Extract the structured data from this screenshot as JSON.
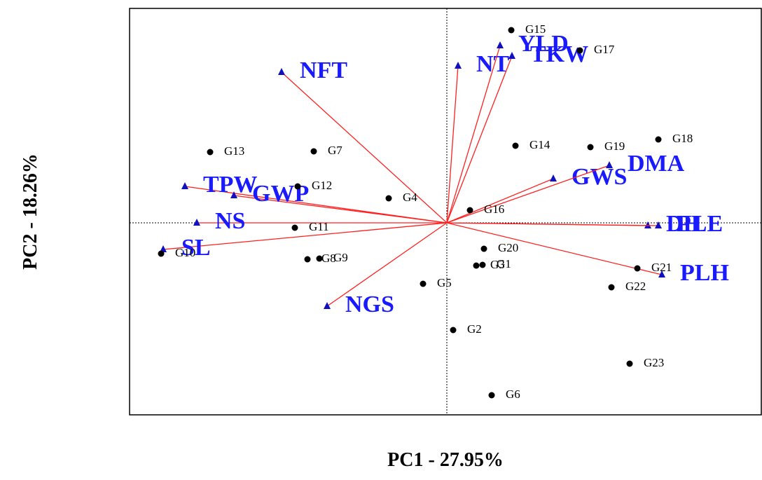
{
  "chart_data": {
    "type": "biplot",
    "x_label": "PC1 - 27.95%",
    "y_label": "PC2 - 18.26%",
    "xlim": [
      -4.53,
      4.49
    ],
    "ylim": [
      -2.74,
      3.06
    ],
    "points": {
      "color": "#000000",
      "labels": [
        "G15",
        "G17",
        "G14",
        "G19",
        "G18",
        "G13",
        "G7",
        "G12",
        "G4",
        "G16",
        "G11",
        "G10",
        "G8",
        "G9",
        "G20",
        "G3",
        "G1",
        "G5",
        "G21",
        "G22",
        "G2",
        "G23",
        "G6"
      ],
      "x": [
        0.92,
        1.9,
        0.98,
        2.05,
        3.02,
        -3.38,
        -1.9,
        -2.13,
        -0.83,
        0.33,
        -2.17,
        -4.08,
        -1.99,
        -1.82,
        0.53,
        0.42,
        0.51,
        -0.34,
        2.72,
        2.35,
        0.09,
        2.61,
        0.64
      ],
      "y": [
        2.75,
        2.46,
        1.1,
        1.08,
        1.19,
        1.01,
        1.02,
        0.52,
        0.35,
        0.18,
        -0.07,
        -0.44,
        -0.52,
        -0.51,
        -0.37,
        -0.61,
        -0.6,
        -0.87,
        -0.65,
        -0.92,
        -1.53,
        -2.01,
        -2.46
      ]
    },
    "vectors": {
      "line_color": "#ff2020",
      "marker_color": "#1010c0",
      "label_color": "#1a1aff",
      "labels": [
        "NFT",
        "NT",
        "YLD",
        "TKW",
        "TPW",
        "GWP",
        "NS",
        "SL",
        "NGS",
        "GWS",
        "DMA",
        "DH",
        "PLE",
        "PLH"
      ],
      "x": [
        -2.36,
        0.16,
        0.76,
        0.93,
        -3.74,
        -3.04,
        -3.57,
        -4.05,
        -1.71,
        1.52,
        2.32,
        2.87,
        3.02,
        3.07
      ],
      "y": [
        2.15,
        2.24,
        2.53,
        2.38,
        0.52,
        0.39,
        0.0,
        -0.38,
        -1.19,
        0.63,
        0.82,
        -0.04,
        -0.04,
        -0.74
      ]
    }
  }
}
